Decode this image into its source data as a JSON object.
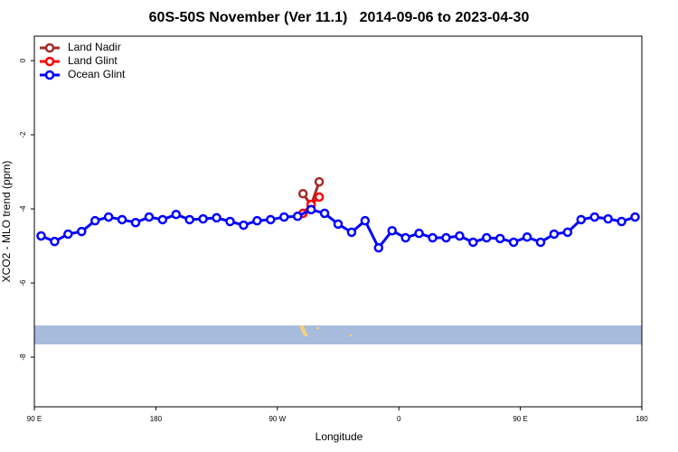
{
  "chart_data": {
    "type": "line",
    "title": "60S-50S November (Ver 11.1)   2014-09-06 to 2023-04-30",
    "x_label": "Longitude",
    "y_label": "XCO2 - MLO trend (ppm)",
    "xlim": [
      90,
      540
    ],
    "xticks": [
      {
        "value": 90,
        "label": "90 E"
      },
      180,
      {
        "value": 270,
        "label": "90 W"
      },
      {
        "value": 360,
        "label": "0"
      },
      {
        "value": 450,
        "label": "90 E"
      },
      {
        "value": 540,
        "label": "180"
      }
    ],
    "ylim": [
      -9.34,
      0.66
    ],
    "yticks": [
      0,
      -2,
      -4,
      -6,
      -8
    ],
    "legend": "top-left",
    "series": [
      {
        "name": "Land Nadir",
        "color": "#a52a2a",
        "x": [
          289,
          295,
          301
        ],
        "values": [
          -3.59,
          -3.9,
          -3.27
        ]
      },
      {
        "name": "Land Glint",
        "color": "#ff0000",
        "x": [
          289,
          295,
          301
        ],
        "values": [
          -4.12,
          -3.88,
          -3.68
        ]
      },
      {
        "name": "Ocean Glint",
        "color": "#0000ff",
        "x": [
          95,
          105,
          115,
          125,
          135,
          145,
          155,
          165,
          175,
          185,
          195,
          205,
          215,
          225,
          235,
          245,
          255,
          265,
          275,
          285,
          295,
          305,
          315,
          325,
          335,
          345,
          355,
          365,
          375,
          385,
          395,
          405,
          415,
          425,
          435,
          445,
          455,
          465,
          475,
          485,
          495,
          505,
          515,
          525,
          535
        ],
        "values": [
          -4.73,
          -4.88,
          -4.68,
          -4.61,
          -4.32,
          -4.22,
          -4.29,
          -4.37,
          -4.22,
          -4.29,
          -4.15,
          -4.29,
          -4.27,
          -4.24,
          -4.34,
          -4.44,
          -4.32,
          -4.29,
          -4.22,
          -4.2,
          -4.02,
          -4.12,
          -4.41,
          -4.63,
          -4.32,
          -5.05,
          -4.59,
          -4.78,
          -4.66,
          -4.78,
          -4.78,
          -4.73,
          -4.9,
          -4.78,
          -4.8,
          -4.9,
          -4.76,
          -4.9,
          -4.68,
          -4.63,
          -4.29,
          -4.22,
          -4.27,
          -4.34,
          -4.22
        ]
      }
    ]
  }
}
